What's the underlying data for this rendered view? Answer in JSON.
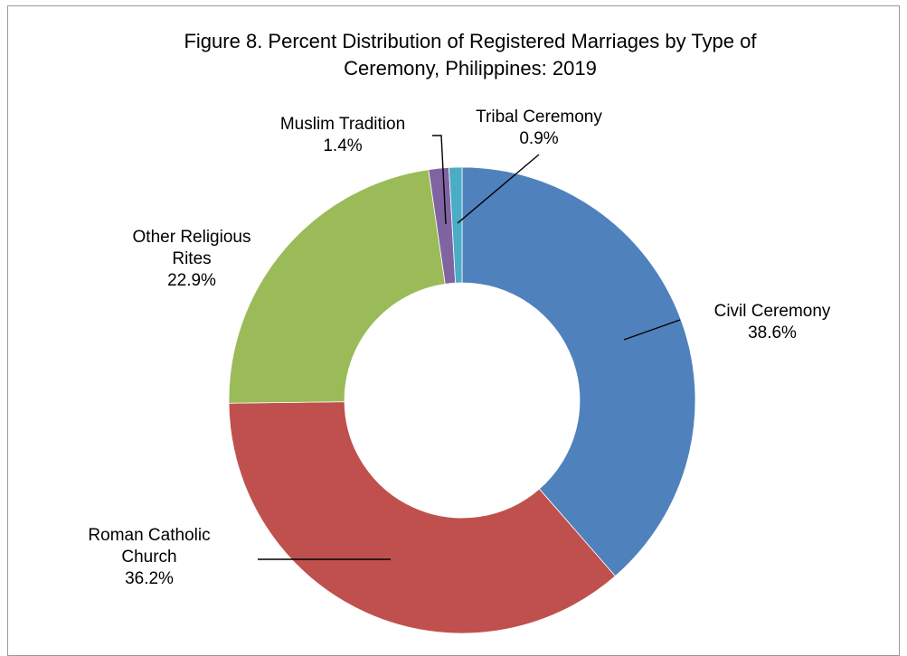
{
  "chart_data": {
    "type": "pie",
    "style": "donut",
    "title_lines": [
      "Figure 8. Percent Distribution of Registered Marriages by Type of",
      "Ceremony, Philippines: 2019"
    ],
    "slices": [
      {
        "label_lines": [
          "Civil Ceremony"
        ],
        "value": 38.6,
        "display": "38.6%",
        "color": "#4F81BD"
      },
      {
        "label_lines": [
          "Roman Catholic",
          "Church"
        ],
        "value": 36.2,
        "display": "36.2%",
        "color": "#C0504D"
      },
      {
        "label_lines": [
          "Other Religious",
          "Rites"
        ],
        "value": 22.9,
        "display": "22.9%",
        "color": "#9BBB59"
      },
      {
        "label_lines": [
          "Muslim Tradition"
        ],
        "value": 1.4,
        "display": "1.4%",
        "color": "#8064A2"
      },
      {
        "label_lines": [
          "Tribal Ceremony"
        ],
        "value": 0.9,
        "display": "0.9%",
        "color": "#4BACC6"
      }
    ],
    "start_angle_deg": 0,
    "direction": "clockwise",
    "legend": "none"
  }
}
